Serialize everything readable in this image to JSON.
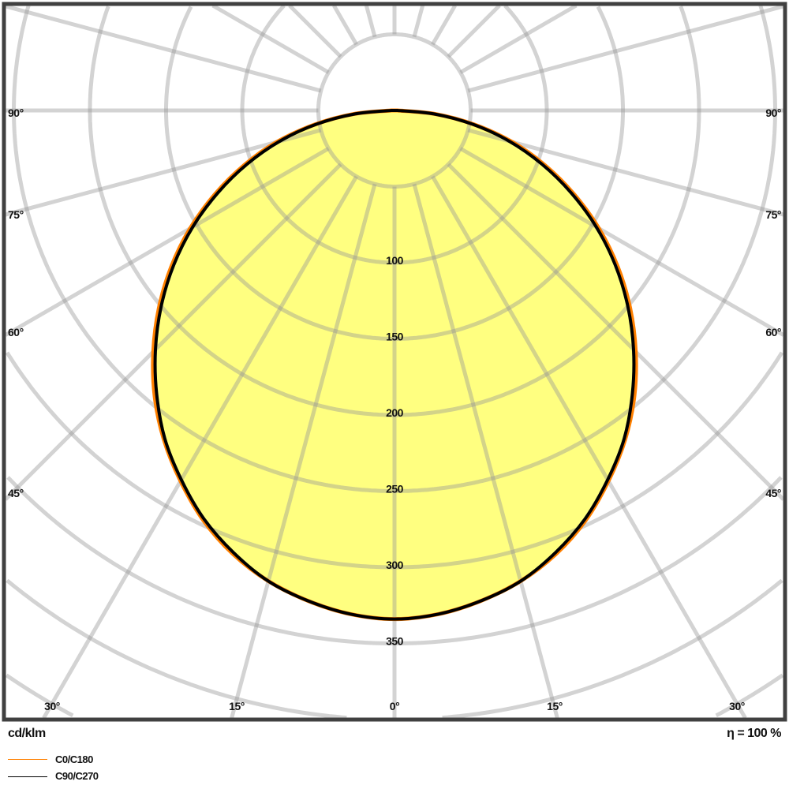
{
  "chart_data": {
    "type": "polar",
    "unit_label": "cd/klm",
    "efficiency_label": "η = 100 %",
    "angle_convention": "0° points down; symmetric both sides",
    "radial_range": [
      0,
      500
    ],
    "radial_grid_step": 50,
    "radial_tick_labels": [
      "100",
      "150",
      "200",
      "250",
      "300",
      "350"
    ],
    "angle_grid_step_deg": 15,
    "side_angle_labels": [
      "90°",
      "75°",
      "60°",
      "45°"
    ],
    "bottom_angle_labels": [
      "30°",
      "15°",
      "0°",
      "15°",
      "30°"
    ],
    "grid": true,
    "legend_placement": "bottom-left",
    "fill_color": "#ffff80",
    "angles_deg": [
      0,
      5,
      10,
      15,
      20,
      25,
      30,
      35,
      40,
      45,
      50,
      55,
      60,
      65,
      70,
      75,
      80,
      85,
      90
    ],
    "series": [
      {
        "name": "C0/C180",
        "color": "#ff8000",
        "values": [
          334,
          332,
          327,
          320,
          310,
          297,
          281,
          264,
          245,
          224,
          202,
          179,
          155,
          130,
          105,
          80,
          53,
          27,
          2
        ]
      },
      {
        "name": "C90/C270",
        "color": "#000000",
        "values": [
          334,
          332,
          327,
          320,
          309,
          296,
          280,
          263,
          243,
          222,
          200,
          177,
          153,
          128,
          103,
          78,
          52,
          26,
          2
        ]
      }
    ]
  }
}
